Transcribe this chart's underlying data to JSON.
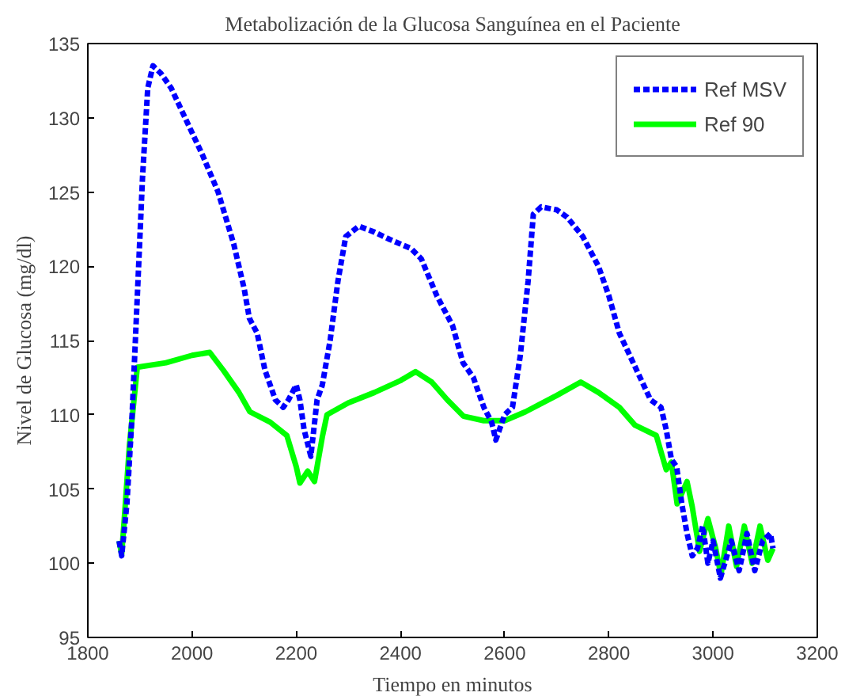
{
  "chart_data": {
    "type": "line",
    "title": "Metabolización de la Glucosa Sanguínea en el Paciente",
    "xlabel": "Tiempo en minutos",
    "ylabel": "Nivel de Glucosa (mg/dl)",
    "xlim": [
      1800,
      3200
    ],
    "ylim": [
      95,
      135
    ],
    "xticks": [
      1800,
      2000,
      2200,
      2400,
      2600,
      2800,
      3000,
      3200
    ],
    "yticks": [
      95,
      100,
      105,
      110,
      115,
      120,
      125,
      130,
      135
    ],
    "grid": false,
    "legend": "top right",
    "series": [
      {
        "name": "Ref MSV",
        "color": "#0000ff",
        "line_style": "dashed",
        "x": [
          1860,
          1865,
          1875,
          1885,
          1895,
          1905,
          1915,
          1925,
          1940,
          1960,
          1980,
          2000,
          2020,
          2050,
          2080,
          2100,
          2110,
          2125,
          2140,
          2160,
          2175,
          2185,
          2200,
          2207,
          2215,
          2228,
          2240,
          2250,
          2265,
          2280,
          2295,
          2320,
          2350,
          2380,
          2420,
          2440,
          2470,
          2500,
          2520,
          2540,
          2560,
          2575,
          2583,
          2600,
          2615,
          2630,
          2645,
          2655,
          2670,
          2700,
          2720,
          2750,
          2780,
          2800,
          2820,
          2840,
          2860,
          2880,
          2900,
          2910,
          2920,
          2930,
          2940,
          2950,
          2960,
          2970,
          2980,
          2990,
          3000,
          3014,
          3035,
          3050,
          3065,
          3080,
          3095,
          3110,
          3115
        ],
        "values": [
          101.5,
          100.5,
          104,
          110,
          118,
          126,
          132,
          133.5,
          133,
          132,
          130.5,
          129,
          127.5,
          125,
          121.5,
          118.5,
          116.5,
          115.5,
          113,
          111,
          110.5,
          111,
          112,
          111,
          109,
          107.2,
          111,
          112,
          115,
          119,
          122,
          122.7,
          122.3,
          121.8,
          121.2,
          120.5,
          118,
          116,
          113.5,
          112.5,
          110.5,
          109.5,
          108.3,
          110,
          110.5,
          114,
          119,
          123.5,
          124,
          123.8,
          123.3,
          122,
          120,
          118,
          115.5,
          114,
          112.5,
          111,
          110.5,
          109,
          107,
          106.5,
          104,
          102,
          100.5,
          101,
          102.5,
          100,
          101.5,
          99,
          101.5,
          99.5,
          102,
          99.5,
          101.5,
          102,
          101
        ]
      },
      {
        "name": "Ref 90",
        "color": "#00ff00",
        "line_style": "solid",
        "x": [
          1860,
          1865,
          1870,
          1880,
          1895,
          1950,
          2000,
          2034,
          2060,
          2090,
          2111,
          2150,
          2182,
          2200,
          2207,
          2222,
          2235,
          2250,
          2259,
          2300,
          2350,
          2400,
          2429,
          2460,
          2490,
          2521,
          2560,
          2600,
          2640,
          2700,
          2746,
          2780,
          2820,
          2850,
          2891,
          2910,
          2920,
          2931,
          2950,
          2960,
          2974,
          2990,
          3005,
          3015,
          3030,
          3045,
          3060,
          3075,
          3090,
          3105,
          3115
        ],
        "values": [
          101.5,
          100.6,
          103,
          108,
          113.2,
          113.5,
          114,
          114.2,
          113,
          111.5,
          110.2,
          109.5,
          108.6,
          106.5,
          105.4,
          106.2,
          105.5,
          108.5,
          110,
          110.8,
          111.5,
          112.3,
          112.9,
          112.2,
          111,
          109.9,
          109.6,
          109.6,
          110.2,
          111.3,
          112.2,
          111.5,
          110.5,
          109.3,
          108.6,
          106.3,
          106.8,
          104,
          105.5,
          103.8,
          100.8,
          103,
          101,
          99.2,
          102.5,
          99.8,
          102.5,
          100,
          102.5,
          100.2,
          101
        ]
      }
    ]
  }
}
